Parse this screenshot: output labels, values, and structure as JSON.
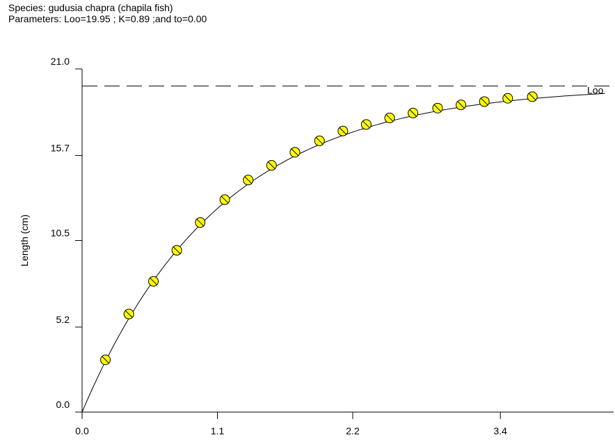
{
  "header": {
    "species": "Species: gudusia chapra (chapila fish)",
    "parameters": "Parameters: Loo=19.95 ; K=0.89 ;and to=0.00"
  },
  "chart_data": {
    "type": "line",
    "ylabel": "Length (cm)",
    "xlabel": "",
    "xlim": [
      0.0,
      4.25
    ],
    "ylim": [
      0.0,
      21.0
    ],
    "x_ticks": [
      "0.0",
      "1.1",
      "2.2",
      "3.4"
    ],
    "x_tick_values": [
      0.0,
      1.1,
      2.2,
      3.4
    ],
    "y_ticks": [
      "0.0",
      "5.2",
      "10.5",
      "15.7",
      "21.0"
    ],
    "y_tick_values": [
      0.0,
      5.2,
      10.5,
      15.7,
      21.0
    ],
    "asymptote": {
      "value": 19.95,
      "label": "Loo"
    },
    "curve": {
      "Linf": 19.95,
      "K": 0.89,
      "t0": 0.0
    },
    "points": {
      "x": [
        0.19,
        0.38,
        0.58,
        0.77,
        0.96,
        1.16,
        1.35,
        1.54,
        1.73,
        1.93,
        2.12,
        2.31,
        2.5,
        2.69,
        2.89,
        3.08,
        3.27,
        3.46,
        3.66
      ],
      "y": [
        3.2,
        6.0,
        8.0,
        9.9,
        11.6,
        13.0,
        14.2,
        15.1,
        15.9,
        16.6,
        17.2,
        17.6,
        18.0,
        18.3,
        18.6,
        18.8,
        19.0,
        19.2,
        19.3
      ]
    },
    "colors": {
      "point_fill": "#ffff00",
      "line": "#000000"
    }
  }
}
